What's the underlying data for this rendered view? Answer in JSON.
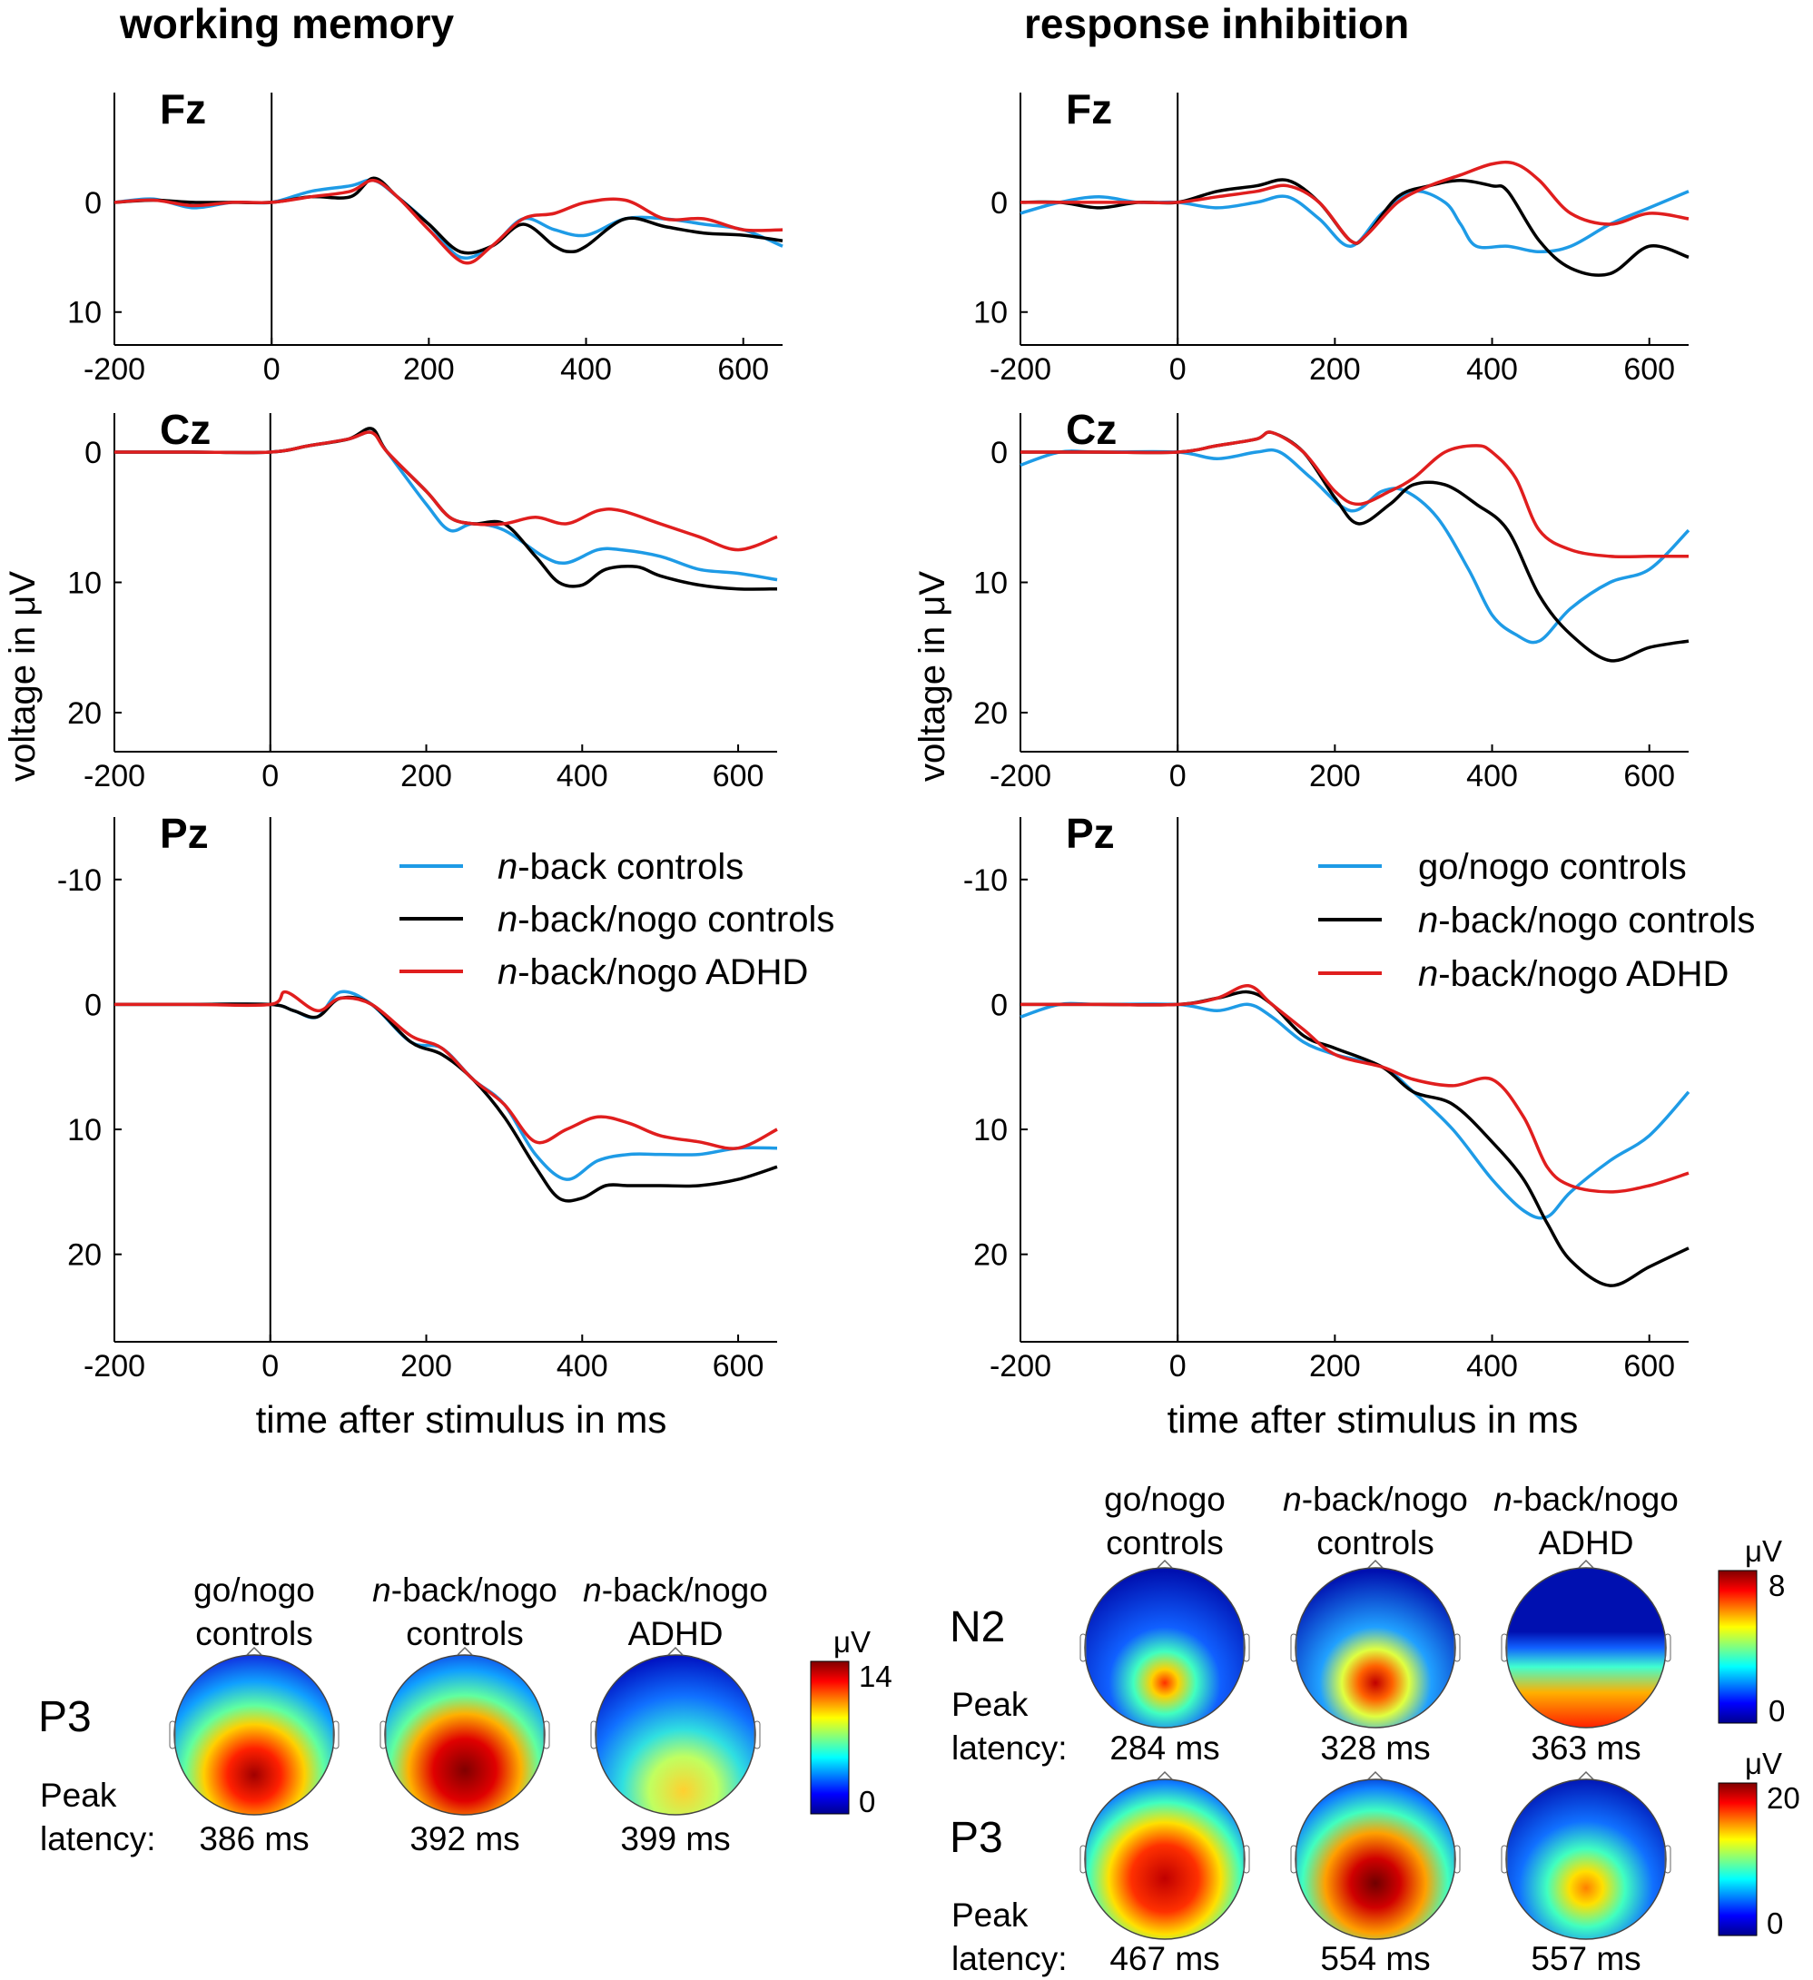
{
  "columns": [
    {
      "title": "working memory",
      "ylabel": "voltage in μV",
      "xlabel": "time after stimulus in ms",
      "legend": [
        {
          "italic": "n",
          "rest": "-back controls",
          "color": "#1e9be6"
        },
        {
          "italic": "n",
          "rest": "-back/nogo controls",
          "color": "#000000"
        },
        {
          "italic": "n",
          "rest": "-back/nogo ADHD",
          "color": "#e01e1e"
        }
      ]
    },
    {
      "title": "response inhibition",
      "ylabel": "voltage in μV",
      "xlabel": "time after stimulus in ms",
      "legend": [
        {
          "italic": "",
          "rest": "go/nogo controls",
          "color": "#1e9be6"
        },
        {
          "italic": "n",
          "rest": "-back/nogo controls",
          "color": "#000000"
        },
        {
          "italic": "n",
          "rest": "-back/nogo ADHD",
          "color": "#e01e1e"
        }
      ]
    }
  ],
  "chart_data": [
    {
      "type": "line",
      "column": 0,
      "electrode": "Fz",
      "x_ticks": [
        -200,
        0,
        200,
        400,
        600
      ],
      "y_ticks": [
        0,
        10
      ],
      "xlim": [
        -200,
        650
      ],
      "ylim": [
        -10,
        13
      ],
      "y_inverted": true,
      "series": [
        {
          "name": "n-back controls",
          "color": "#1e9be6",
          "x": [
            -200,
            -150,
            -100,
            -50,
            0,
            50,
            100,
            130,
            160,
            200,
            240,
            280,
            320,
            360,
            400,
            450,
            500,
            550,
            600,
            650
          ],
          "y": [
            0,
            -0.3,
            0.5,
            0,
            0,
            -1,
            -1.5,
            -2,
            -0.5,
            2,
            5,
            4,
            1.5,
            2.5,
            3,
            1.5,
            1.5,
            2,
            2.5,
            4
          ]
        },
        {
          "name": "n-back/nogo controls",
          "color": "#000000",
          "x": [
            -200,
            -150,
            -100,
            -50,
            0,
            50,
            100,
            130,
            160,
            200,
            240,
            280,
            320,
            360,
            380,
            400,
            450,
            500,
            550,
            600,
            650
          ],
          "y": [
            0,
            -0.2,
            0,
            0,
            0,
            -0.5,
            -0.5,
            -2.2,
            -0.5,
            2,
            4.5,
            4,
            2,
            4,
            4.5,
            4,
            1.5,
            2.2,
            2.8,
            3,
            3.5
          ]
        },
        {
          "name": "n-back/nogo ADHD",
          "color": "#e01e1e",
          "x": [
            -200,
            -150,
            -100,
            -50,
            0,
            50,
            100,
            130,
            160,
            200,
            245,
            280,
            320,
            360,
            400,
            450,
            500,
            550,
            600,
            650
          ],
          "y": [
            0,
            -0.2,
            0.3,
            0,
            0,
            -0.5,
            -1,
            -2,
            -0.5,
            2.5,
            5.5,
            4,
            1.5,
            1,
            0,
            -0.2,
            1.5,
            1.5,
            2.5,
            2.5
          ]
        }
      ]
    },
    {
      "type": "line",
      "column": 0,
      "electrode": "Cz",
      "x_ticks": [
        -200,
        0,
        200,
        400,
        600
      ],
      "y_ticks": [
        0,
        10,
        20
      ],
      "xlim": [
        -200,
        650
      ],
      "ylim": [
        -3,
        23
      ],
      "y_inverted": true,
      "series": [
        {
          "name": "n-back controls",
          "color": "#1e9be6",
          "x": [
            -200,
            -100,
            0,
            50,
            100,
            130,
            150,
            200,
            230,
            260,
            300,
            350,
            380,
            420,
            450,
            500,
            550,
            600,
            650
          ],
          "y": [
            0,
            0,
            0,
            -0.5,
            -1,
            -1.5,
            0,
            4,
            6,
            5.5,
            6,
            8,
            8.5,
            7.5,
            7.5,
            8,
            9,
            9.3,
            9.8
          ]
        },
        {
          "name": "n-back/nogo controls",
          "color": "#000000",
          "x": [
            -200,
            -100,
            0,
            50,
            100,
            130,
            150,
            200,
            230,
            260,
            300,
            340,
            370,
            400,
            430,
            470,
            500,
            550,
            600,
            650
          ],
          "y": [
            0,
            0,
            0,
            -0.5,
            -1,
            -1.8,
            0,
            3,
            5,
            5.5,
            5.5,
            8,
            10,
            10.2,
            9,
            8.8,
            9.5,
            10.2,
            10.5,
            10.5
          ]
        },
        {
          "name": "n-back/nogo ADHD",
          "color": "#e01e1e",
          "x": [
            -200,
            -100,
            0,
            50,
            100,
            130,
            150,
            200,
            230,
            260,
            300,
            340,
            380,
            420,
            450,
            500,
            550,
            600,
            650
          ],
          "y": [
            0,
            0,
            0,
            -0.5,
            -1,
            -1.5,
            0,
            3,
            5,
            5.5,
            5.5,
            5,
            5.5,
            4.5,
            4.5,
            5.5,
            6.5,
            7.5,
            6.5
          ]
        }
      ]
    },
    {
      "type": "line",
      "column": 0,
      "electrode": "Pz",
      "x_ticks": [
        -200,
        0,
        200,
        400,
        600
      ],
      "y_ticks": [
        -10,
        0,
        10,
        20
      ],
      "xlim": [
        -200,
        650
      ],
      "ylim": [
        -15,
        27
      ],
      "y_inverted": true,
      "series": [
        {
          "name": "n-back controls",
          "color": "#1e9be6",
          "x": [
            -200,
            -100,
            0,
            30,
            60,
            90,
            130,
            180,
            220,
            260,
            300,
            340,
            380,
            420,
            460,
            500,
            550,
            600,
            650
          ],
          "y": [
            0,
            0,
            0,
            0.5,
            1,
            -1,
            0,
            3,
            3.5,
            6,
            8,
            12,
            14,
            12.5,
            12,
            12,
            12,
            11.5,
            11.5
          ]
        },
        {
          "name": "n-back/nogo controls",
          "color": "#000000",
          "x": [
            -200,
            -100,
            0,
            30,
            60,
            90,
            130,
            180,
            220,
            260,
            300,
            340,
            370,
            400,
            430,
            460,
            500,
            550,
            600,
            650
          ],
          "y": [
            0,
            0,
            0,
            0.5,
            1,
            -0.5,
            0,
            3,
            4,
            6,
            9,
            13,
            15.5,
            15.5,
            14.5,
            14.5,
            14.5,
            14.5,
            14,
            13
          ]
        },
        {
          "name": "n-back/nogo ADHD",
          "color": "#e01e1e",
          "x": [
            -200,
            -100,
            0,
            20,
            60,
            90,
            130,
            180,
            220,
            260,
            300,
            340,
            380,
            420,
            460,
            500,
            550,
            600,
            650
          ],
          "y": [
            0,
            0,
            0,
            -1,
            0.5,
            -0.5,
            0,
            2.5,
            3.5,
            6,
            8,
            11,
            10,
            9,
            9.5,
            10.5,
            11,
            11.5,
            10
          ]
        }
      ]
    },
    {
      "type": "line",
      "column": 1,
      "electrode": "Fz",
      "x_ticks": [
        -200,
        0,
        200,
        400,
        600
      ],
      "y_ticks": [
        0,
        10
      ],
      "xlim": [
        -200,
        650
      ],
      "ylim": [
        -10,
        13
      ],
      "y_inverted": true,
      "series": [
        {
          "name": "go/nogo controls",
          "color": "#1e9be6",
          "x": [
            -200,
            -150,
            -100,
            -50,
            0,
            50,
            100,
            140,
            180,
            220,
            260,
            300,
            340,
            360,
            380,
            420,
            460,
            500,
            550,
            600,
            650
          ],
          "y": [
            1,
            0,
            -0.5,
            0,
            0,
            0.5,
            0,
            -0.5,
            1.5,
            4,
            1,
            -1,
            0,
            2,
            4,
            4,
            4.5,
            4,
            2,
            0.5,
            -1
          ]
        },
        {
          "name": "n-back/nogo controls",
          "color": "#000000",
          "x": [
            -200,
            -150,
            -100,
            -50,
            0,
            50,
            100,
            140,
            180,
            220,
            240,
            280,
            320,
            360,
            400,
            420,
            460,
            500,
            550,
            600,
            650
          ],
          "y": [
            0,
            0,
            0.5,
            0,
            0,
            -1,
            -1.5,
            -2,
            0,
            3.5,
            3,
            -0.5,
            -1.5,
            -2,
            -1.5,
            -1,
            3.5,
            6,
            6.5,
            4,
            5
          ]
        },
        {
          "name": "n-back/nogo ADHD",
          "color": "#e01e1e",
          "x": [
            -200,
            -150,
            -100,
            -50,
            0,
            50,
            100,
            140,
            180,
            220,
            240,
            280,
            320,
            360,
            400,
            430,
            460,
            500,
            550,
            600,
            650
          ],
          "y": [
            0,
            0,
            0,
            0,
            0,
            -0.5,
            -1,
            -1.5,
            0,
            3.5,
            3,
            0,
            -1.5,
            -2.5,
            -3.5,
            -3.5,
            -2,
            1,
            2,
            1,
            1.5
          ]
        }
      ]
    },
    {
      "type": "line",
      "column": 1,
      "electrode": "Cz",
      "x_ticks": [
        -200,
        0,
        200,
        400,
        600
      ],
      "y_ticks": [
        0,
        10,
        20
      ],
      "xlim": [
        -200,
        650
      ],
      "ylim": [
        -3,
        23
      ],
      "y_inverted": true,
      "series": [
        {
          "name": "go/nogo controls",
          "color": "#1e9be6",
          "x": [
            -200,
            -150,
            -100,
            0,
            50,
            100,
            130,
            170,
            220,
            260,
            290,
            330,
            370,
            400,
            430,
            460,
            500,
            550,
            600,
            650
          ],
          "y": [
            1,
            0,
            0,
            0,
            0.5,
            0,
            0,
            2,
            4.5,
            3,
            3,
            5,
            9,
            12.5,
            14,
            14.5,
            12,
            10,
            9,
            6
          ]
        },
        {
          "name": "n-back/nogo controls",
          "color": "#000000",
          "x": [
            -200,
            -100,
            0,
            50,
            100,
            120,
            160,
            200,
            230,
            270,
            300,
            340,
            380,
            420,
            460,
            500,
            550,
            600,
            650
          ],
          "y": [
            0,
            0,
            0,
            -0.5,
            -1,
            -1.5,
            0,
            3.5,
            5.5,
            4,
            2.5,
            2.5,
            4,
            6,
            11,
            14,
            16,
            15,
            14.5
          ]
        },
        {
          "name": "n-back/nogo ADHD",
          "color": "#e01e1e",
          "x": [
            -200,
            -100,
            0,
            50,
            100,
            120,
            160,
            200,
            230,
            270,
            300,
            340,
            380,
            400,
            430,
            460,
            500,
            550,
            600,
            650
          ],
          "y": [
            0,
            0,
            0,
            -0.5,
            -1,
            -1.5,
            0,
            3,
            4,
            3,
            2,
            0,
            -0.5,
            0,
            2,
            6,
            7.5,
            8,
            8,
            8
          ]
        }
      ]
    },
    {
      "type": "line",
      "column": 1,
      "electrode": "Pz",
      "x_ticks": [
        -200,
        0,
        200,
        400,
        600
      ],
      "y_ticks": [
        -10,
        0,
        10,
        20
      ],
      "xlim": [
        -200,
        650
      ],
      "ylim": [
        -15,
        27
      ],
      "y_inverted": true,
      "series": [
        {
          "name": "go/nogo controls",
          "color": "#1e9be6",
          "x": [
            -200,
            -150,
            -100,
            0,
            50,
            90,
            120,
            160,
            200,
            260,
            300,
            350,
            400,
            440,
            470,
            500,
            550,
            600,
            650
          ],
          "y": [
            1,
            0,
            0,
            0,
            0.5,
            0,
            1,
            3,
            4,
            5,
            7,
            10,
            14,
            16.5,
            17,
            15,
            12.5,
            10.5,
            7
          ]
        },
        {
          "name": "n-back/nogo controls",
          "color": "#000000",
          "x": [
            -200,
            -150,
            -100,
            0,
            50,
            90,
            120,
            160,
            200,
            260,
            300,
            350,
            400,
            440,
            470,
            500,
            550,
            600,
            650
          ],
          "y": [
            0,
            0,
            0,
            0,
            -0.5,
            -1,
            0,
            2.5,
            3.5,
            5,
            7,
            8,
            11,
            14,
            17.5,
            20.5,
            22.5,
            21,
            19.5
          ]
        },
        {
          "name": "n-back/nogo ADHD",
          "color": "#e01e1e",
          "x": [
            -200,
            -150,
            -100,
            0,
            50,
            90,
            120,
            160,
            200,
            260,
            300,
            350,
            400,
            440,
            470,
            500,
            550,
            600,
            650
          ],
          "y": [
            0,
            0,
            0,
            0,
            -0.5,
            -1.5,
            0,
            2,
            4,
            5,
            6,
            6.5,
            6,
            9,
            13,
            14.5,
            15,
            14.5,
            13.5
          ]
        }
      ]
    }
  ],
  "topomaps": {
    "left": {
      "component": "P3",
      "peak_label": [
        "Peak",
        "latency:"
      ],
      "groups": [
        {
          "label_italic": "",
          "label_line1": "go/nogo",
          "label_line2": "controls",
          "latency": "386 ms"
        },
        {
          "label_italic": "n",
          "label_line1": "-back/nogo",
          "label_line2": "controls",
          "latency": "392 ms"
        },
        {
          "label_italic": "n",
          "label_line1": "-back/nogo",
          "label_line2": "ADHD",
          "latency": "399 ms"
        }
      ],
      "colorbar": {
        "unit": "μV",
        "max": "14",
        "min": "0"
      }
    },
    "right": {
      "groups": [
        {
          "label_italic": "",
          "label_line1": "go/nogo",
          "label_line2": "controls"
        },
        {
          "label_italic": "n",
          "label_line1": "-back/nogo",
          "label_line2": "controls"
        },
        {
          "label_italic": "n",
          "label_line1": "-back/nogo",
          "label_line2": "ADHD"
        }
      ],
      "rows": [
        {
          "component": "N2",
          "peak_label": [
            "Peak",
            "latency:"
          ],
          "latencies": [
            "284 ms",
            "328 ms",
            "363 ms"
          ],
          "colorbar": {
            "unit": "μV",
            "max": "8",
            "min": "0"
          }
        },
        {
          "component": "P3",
          "peak_label": [
            "Peak",
            "latency:"
          ],
          "latencies": [
            "467 ms",
            "554 ms",
            "557 ms"
          ],
          "colorbar": {
            "unit": "μV",
            "max": "20",
            "min": "0"
          }
        }
      ]
    }
  }
}
